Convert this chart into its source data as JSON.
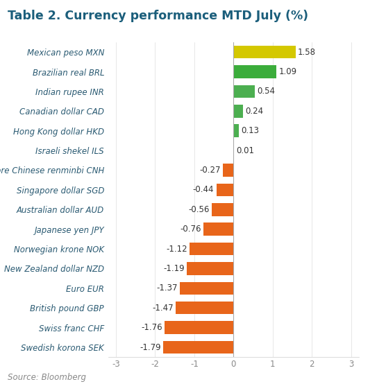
{
  "title": "Table 2. Currency performance MTD July (%)",
  "source": "Source: Bloomberg",
  "categories": [
    "Swedish korona SEK",
    "Swiss franc CHF",
    "British pound GBP",
    "Euro EUR",
    "New Zealand dollar NZD",
    "Norwegian krone NOK",
    "Japanese yen JPY",
    "Australian dollar AUD",
    "Singapore dollar SGD",
    "Offshore Chinese renminbi CNH",
    "Israeli shekel ILS",
    "Hong Kong dollar HKD",
    "Canadian dollar CAD",
    "Indian rupee INR",
    "Brazilian real BRL",
    "Mexican peso MXN"
  ],
  "values": [
    -1.79,
    -1.76,
    -1.47,
    -1.37,
    -1.19,
    -1.12,
    -0.76,
    -0.56,
    -0.44,
    -0.27,
    0.01,
    0.13,
    0.24,
    0.54,
    1.09,
    1.58
  ],
  "colors": [
    "#E8651A",
    "#E8651A",
    "#E8651A",
    "#E8651A",
    "#E8651A",
    "#E8651A",
    "#E8651A",
    "#E8651A",
    "#E8651A",
    "#E8651A",
    "#4CAF50",
    "#4CAF50",
    "#4CAF50",
    "#4CAF50",
    "#3BAD3B",
    "#D4C800"
  ],
  "xlim": [
    -3.2,
    3.2
  ],
  "xticks": [
    -3,
    -2,
    -1,
    0,
    1,
    2,
    3
  ],
  "background_color": "#FFFFFF",
  "title_color": "#1B5E7B",
  "label_color": "#2A5A72",
  "value_color": "#333333",
  "source_color": "#888888",
  "title_fontsize": 12.5,
  "label_fontsize": 8.5,
  "value_fontsize": 8.5,
  "source_fontsize": 8.5,
  "bar_height": 0.65
}
